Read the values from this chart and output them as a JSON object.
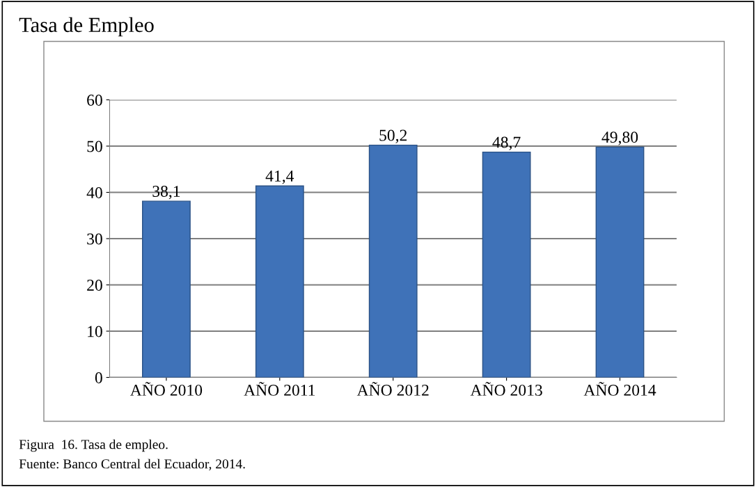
{
  "chart_data": {
    "type": "bar",
    "title": "Tasa de Empleo",
    "categories": [
      "AÑO 2010",
      "AÑO 2011",
      "AÑO 2012",
      "AÑO 2013",
      "AÑO 2014"
    ],
    "values": [
      38.1,
      41.4,
      50.2,
      48.7,
      49.8
    ],
    "value_labels": [
      "38,1",
      "41,4",
      "50,2",
      "48,7",
      "49,80"
    ],
    "color": "#3f72b8",
    "ylim": [
      0,
      60
    ],
    "yticks": [
      0,
      10,
      20,
      30,
      40,
      50,
      60
    ],
    "grid": "y",
    "legend": false,
    "annotations": [
      "Figura  16. Tasa de empleo.",
      "Fuente: Banco Central del Ecuador, 2014."
    ]
  }
}
